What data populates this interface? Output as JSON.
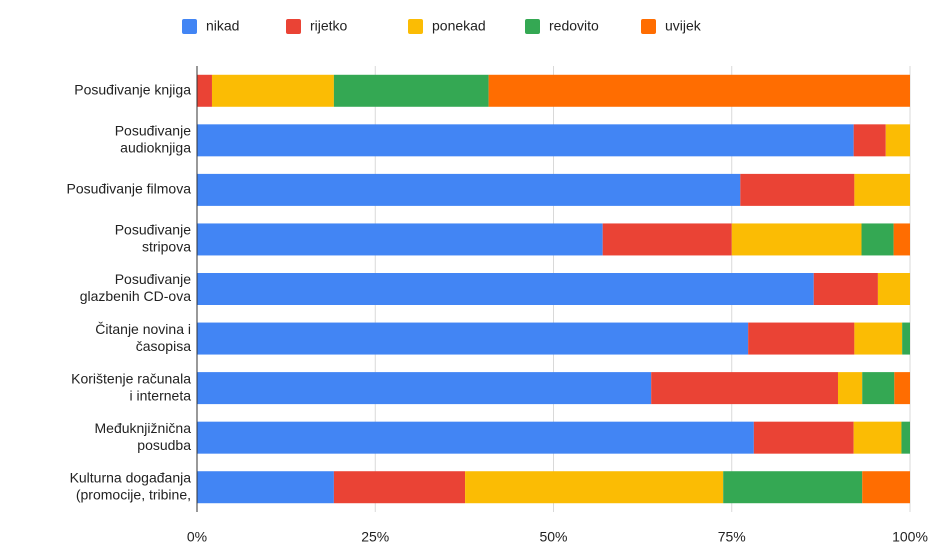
{
  "chart_data": {
    "type": "stacked_bar_horizontal",
    "categories": [
      [
        "Posuđivanje knjiga"
      ],
      [
        "Posuđivanje",
        "audioknjiga"
      ],
      [
        "Posuđivanje filmova"
      ],
      [
        "Posuđivanje",
        "stripova"
      ],
      [
        "Posuđivanje",
        "glazbenih CD-ova"
      ],
      [
        "Čitanje novina i",
        "časopisa"
      ],
      [
        "Korištenje računala",
        "i interneta"
      ],
      [
        "Međuknjižnična",
        "posudba"
      ],
      [
        "Kulturna događanja",
        "(promocije, tribine,"
      ]
    ],
    "series": [
      {
        "name": "nikad",
        "color": "#4285f4",
        "values": [
          0,
          92.1,
          76.2,
          56.9,
          86.5,
          77.3,
          63.7,
          78.1,
          19.2
        ]
      },
      {
        "name": "rijetko",
        "color": "#ea4335",
        "values": [
          2.1,
          4.5,
          16.0,
          18.1,
          9.0,
          14.9,
          26.2,
          14.0,
          18.4
        ]
      },
      {
        "name": "ponekad",
        "color": "#fbbc04",
        "values": [
          17.1,
          3.4,
          7.8,
          18.2,
          4.5,
          6.7,
          3.4,
          6.7,
          36.2
        ]
      },
      {
        "name": "redovito",
        "color": "#34a853",
        "values": [
          21.7,
          0,
          0,
          4.5,
          0,
          1.1,
          4.5,
          1.2,
          19.5
        ]
      },
      {
        "name": "uvijek",
        "color": "#ff6d01",
        "values": [
          59.1,
          0,
          0,
          2.3,
          0,
          0,
          2.2,
          0,
          6.7
        ]
      }
    ],
    "xlim": [
      0,
      100
    ],
    "xticks": [
      {
        "value": 0,
        "label": "0%"
      },
      {
        "value": 25,
        "label": "25%"
      },
      {
        "value": 50,
        "label": "50%"
      },
      {
        "value": 75,
        "label": "75%"
      },
      {
        "value": 100,
        "label": "100%"
      }
    ],
    "grid": true,
    "legend": "top"
  }
}
